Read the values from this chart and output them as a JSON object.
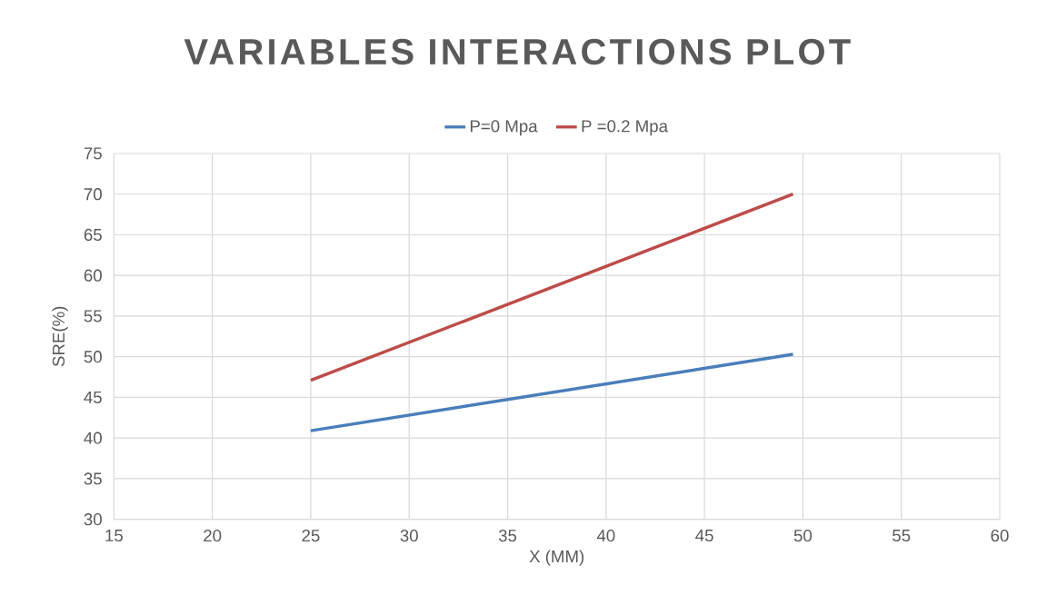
{
  "chart_data": {
    "type": "line",
    "title": "VARIABLES INTERACTIONS PLOT",
    "xlabel": "X (MM)",
    "ylabel": "SRE(%)",
    "series": [
      {
        "name": "P=0 Mpa",
        "color": "#4a7ebb",
        "values": [
          40.9,
          50.3
        ]
      },
      {
        "name": "P =0.2 Mpa",
        "color": "#be4b48",
        "values": [
          47.1,
          70.0
        ]
      }
    ],
    "x": [
      25,
      49.5
    ],
    "xlim": [
      15,
      60
    ],
    "xticks": [
      15,
      20,
      25,
      30,
      35,
      40,
      45,
      50,
      55,
      60
    ],
    "ylim": [
      30,
      75
    ],
    "yticks": [
      30,
      35,
      40,
      45,
      50,
      55,
      60,
      65,
      70,
      75
    ],
    "grid": true,
    "legend": "top",
    "marker": "none",
    "line_style": "solid"
  }
}
